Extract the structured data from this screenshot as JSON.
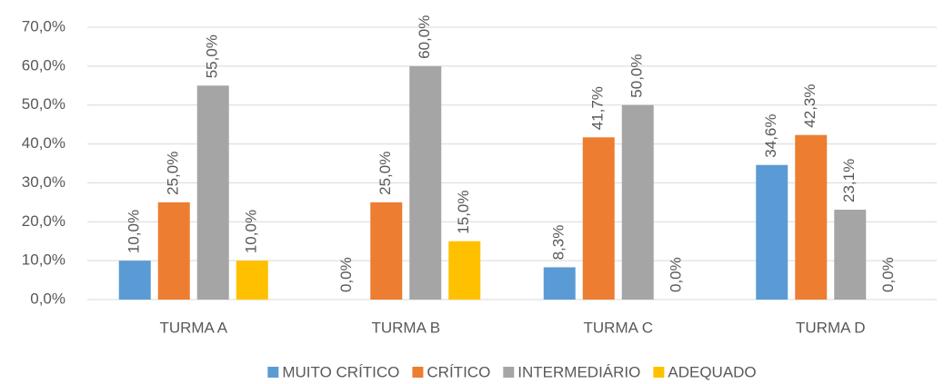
{
  "chart_data": {
    "type": "bar",
    "categories": [
      "TURMA A",
      "TURMA B",
      "TURMA C",
      "TURMA D"
    ],
    "series": [
      {
        "name": "MUITO CRÍTICO",
        "color": "#5b9bd5",
        "values": [
          10,
          0,
          8.3,
          34.6
        ],
        "value_labels": [
          "10,0%",
          "0,0%",
          "8,3%",
          "34,6%"
        ]
      },
      {
        "name": "CRÍTICO",
        "color": "#ed7d31",
        "values": [
          25,
          25,
          41.7,
          42.3
        ],
        "value_labels": [
          "25,0%",
          "25,0%",
          "41,7%",
          "42,3%"
        ]
      },
      {
        "name": "INTERMEDIÁRIO",
        "color": "#a5a5a5",
        "values": [
          55,
          60,
          50,
          23.1
        ],
        "value_labels": [
          "55,0%",
          "60,0%",
          "50,0%",
          "23,1%"
        ]
      },
      {
        "name": "ADEQUADO",
        "color": "#ffc000",
        "values": [
          10,
          15,
          0,
          0
        ],
        "value_labels": [
          "10,0%",
          "15,0%",
          "0,0%",
          "0,0%"
        ]
      }
    ],
    "ylim": [
      0,
      70
    ],
    "yticks": [
      {
        "value": 0,
        "label": "0,0%"
      },
      {
        "value": 10,
        "label": "10,0%"
      },
      {
        "value": 20,
        "label": "20,0%"
      },
      {
        "value": 30,
        "label": "30,0%"
      },
      {
        "value": 40,
        "label": "40,0%"
      },
      {
        "value": 50,
        "label": "50,0%"
      },
      {
        "value": 60,
        "label": "60,0%"
      },
      {
        "value": 70,
        "label": "70,0%"
      }
    ],
    "grid": true,
    "legend": "bottom"
  }
}
